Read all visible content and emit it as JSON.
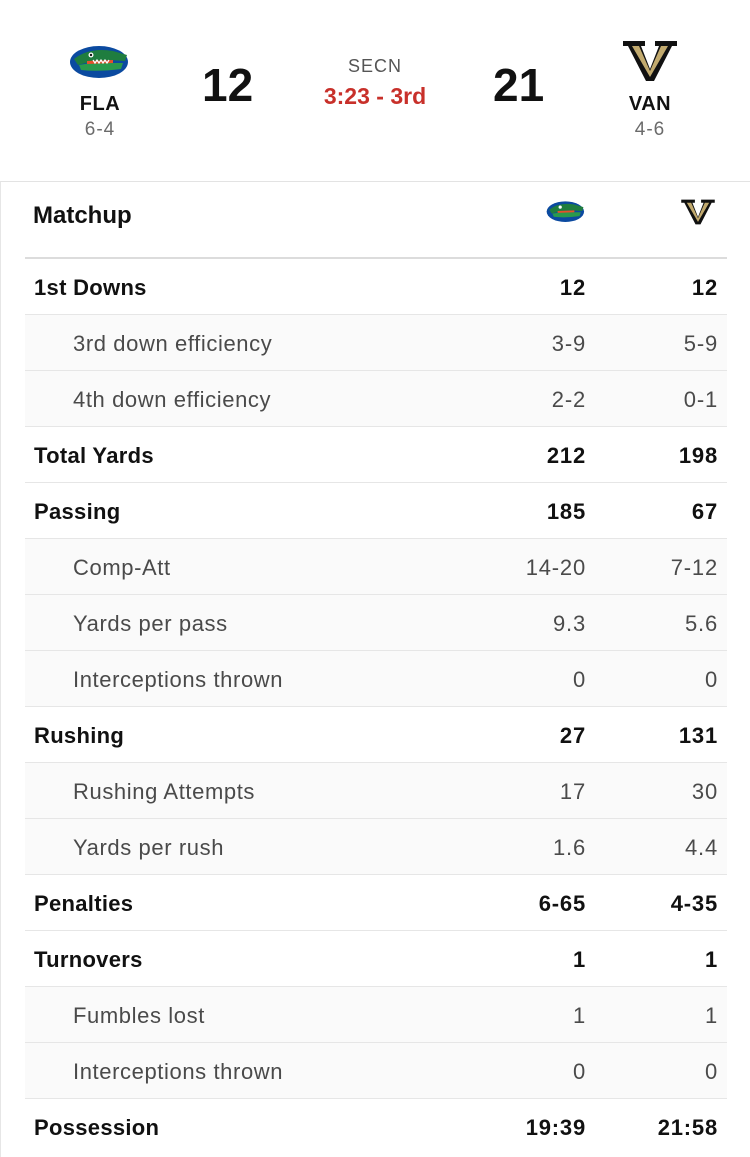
{
  "game": {
    "network": "SECN",
    "clock": "3:23 - 3rd",
    "away": {
      "abbr": "FLA",
      "record": "6-4",
      "score": "12",
      "logo_icon": "florida-gator-logo-icon",
      "color": "#0b4aa0"
    },
    "home": {
      "abbr": "VAN",
      "record": "4-6",
      "score": "21",
      "logo_icon": "vanderbilt-v-logo-icon",
      "color": "#a8925c"
    },
    "clock_color": "#c8302a"
  },
  "matchup": {
    "title": "Matchup",
    "rows": [
      {
        "label": "1st Downs",
        "away": "12",
        "home": "12",
        "type": "main"
      },
      {
        "label": "3rd down efficiency",
        "away": "3-9",
        "home": "5-9",
        "type": "sub"
      },
      {
        "label": "4th down efficiency",
        "away": "2-2",
        "home": "0-1",
        "type": "sub"
      },
      {
        "label": "Total Yards",
        "away": "212",
        "home": "198",
        "type": "main"
      },
      {
        "label": "Passing",
        "away": "185",
        "home": "67",
        "type": "main"
      },
      {
        "label": "Comp-Att",
        "away": "14-20",
        "home": "7-12",
        "type": "sub"
      },
      {
        "label": "Yards per pass",
        "away": "9.3",
        "home": "5.6",
        "type": "sub"
      },
      {
        "label": "Interceptions thrown",
        "away": "0",
        "home": "0",
        "type": "sub"
      },
      {
        "label": "Rushing",
        "away": "27",
        "home": "131",
        "type": "main"
      },
      {
        "label": "Rushing Attempts",
        "away": "17",
        "home": "30",
        "type": "sub"
      },
      {
        "label": "Yards per rush",
        "away": "1.6",
        "home": "4.4",
        "type": "sub"
      },
      {
        "label": "Penalties",
        "away": "6-65",
        "home": "4-35",
        "type": "main"
      },
      {
        "label": "Turnovers",
        "away": "1",
        "home": "1",
        "type": "main"
      },
      {
        "label": "Fumbles lost",
        "away": "1",
        "home": "1",
        "type": "sub"
      },
      {
        "label": "Interceptions thrown",
        "away": "0",
        "home": "0",
        "type": "sub"
      },
      {
        "label": "Possession",
        "away": "19:39",
        "home": "21:58",
        "type": "main"
      }
    ]
  }
}
